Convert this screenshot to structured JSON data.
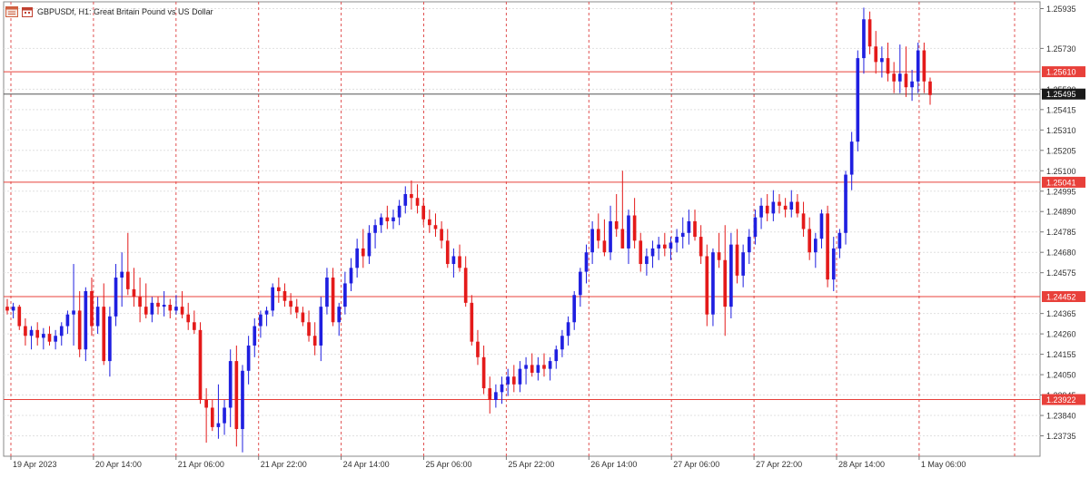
{
  "header": {
    "symbol_line": "GBPUSDf, H1:  Great Britain Pound vs US Dollar",
    "icons": [
      "chart-window-icon",
      "calendar-icon"
    ]
  },
  "colors": {
    "bull": "#1f1fe0",
    "bear": "#e41a1a",
    "grid": "#e0e0e0",
    "hline": "#e8403a",
    "price_line": "#555555",
    "vline": "#e05050",
    "axis_text": "#333333"
  },
  "chart_data": {
    "type": "candlestick",
    "title": "GBPUSDf, H1:  Great Britain Pound vs US Dollar",
    "xlabel": "",
    "ylabel": "",
    "ylim": [
      1.2363,
      1.2597
    ],
    "y_ticks": [
      "1.25935",
      "1.25730",
      "1.25520",
      "1.25415",
      "1.25310",
      "1.25205",
      "1.25100",
      "1.24995",
      "1.24890",
      "1.24785",
      "1.24680",
      "1.24575",
      "1.24365",
      "1.24260",
      "1.24155",
      "1.24050",
      "1.23945",
      "1.23840",
      "1.23735"
    ],
    "x_ticks": [
      "19 Apr 2023",
      "20 Apr 14:00",
      "21 Apr 06:00",
      "21 Apr 22:00",
      "24 Apr 14:00",
      "25 Apr 06:00",
      "25 Apr 22:00",
      "26 Apr 14:00",
      "27 Apr 06:00",
      "27 Apr 22:00",
      "28 Apr 14:00",
      "1 May 06:00"
    ],
    "levels": [
      {
        "label": "1.25610",
        "value": 1.2561,
        "style": "resistance"
      },
      {
        "label": "1.25041",
        "value": 1.25041,
        "style": "resistance"
      },
      {
        "label": "1.24452",
        "value": 1.24452,
        "style": "support"
      },
      {
        "label": "1.23922",
        "value": 1.23922,
        "style": "support"
      }
    ],
    "current_price": {
      "label": "1.25495",
      "value": 1.25495
    },
    "grid": true,
    "candles": [
      [
        1.244,
        1.2444,
        1.2436,
        1.2438
      ],
      [
        1.2438,
        1.2442,
        1.2434,
        1.244
      ],
      [
        1.244,
        1.2441,
        1.2428,
        1.243
      ],
      [
        1.243,
        1.2434,
        1.242,
        1.2425
      ],
      [
        1.2425,
        1.243,
        1.2418,
        1.2428
      ],
      [
        1.2428,
        1.2432,
        1.242,
        1.2424
      ],
      [
        1.2424,
        1.2429,
        1.2418,
        1.2426
      ],
      [
        1.2426,
        1.243,
        1.242,
        1.2422
      ],
      [
        1.2422,
        1.2428,
        1.2418,
        1.2425
      ],
      [
        1.2425,
        1.2432,
        1.242,
        1.243
      ],
      [
        1.243,
        1.2438,
        1.2426,
        1.2436
      ],
      [
        1.2436,
        1.2462,
        1.242,
        1.2438
      ],
      [
        1.2438,
        1.2448,
        1.2414,
        1.2418
      ],
      [
        1.2418,
        1.245,
        1.2412,
        1.2448
      ],
      [
        1.2448,
        1.2455,
        1.2425,
        1.243
      ],
      [
        1.243,
        1.2445,
        1.2426,
        1.244
      ],
      [
        1.244,
        1.2452,
        1.241,
        1.2412
      ],
      [
        1.2412,
        1.244,
        1.2404,
        1.2435
      ],
      [
        1.2435,
        1.2462,
        1.243,
        1.2455
      ],
      [
        1.2455,
        1.2468,
        1.244,
        1.2458
      ],
      [
        1.2458,
        1.2478,
        1.2446,
        1.2449
      ],
      [
        1.2449,
        1.246,
        1.244,
        1.2445
      ],
      [
        1.2445,
        1.2455,
        1.2432,
        1.244
      ],
      [
        1.244,
        1.2452,
        1.2434,
        1.2436
      ],
      [
        1.2436,
        1.2445,
        1.2432,
        1.2442
      ],
      [
        1.2442,
        1.2445,
        1.2436,
        1.244
      ],
      [
        1.244,
        1.2448,
        1.2435,
        1.2441
      ],
      [
        1.2441,
        1.2444,
        1.2434,
        1.2438
      ],
      [
        1.2438,
        1.2446,
        1.2436,
        1.244
      ],
      [
        1.244,
        1.2448,
        1.2434,
        1.2436
      ],
      [
        1.2436,
        1.2442,
        1.2428,
        1.2432
      ],
      [
        1.2432,
        1.2438,
        1.2426,
        1.2428
      ],
      [
        1.2428,
        1.2432,
        1.239,
        1.2392
      ],
      [
        1.2392,
        1.2398,
        1.237,
        1.2388
      ],
      [
        1.2388,
        1.2392,
        1.2376,
        1.2378
      ],
      [
        1.2378,
        1.24,
        1.2372,
        1.238
      ],
      [
        1.238,
        1.2392,
        1.2374,
        1.2388
      ],
      [
        1.2388,
        1.2418,
        1.2378,
        1.2412
      ],
      [
        1.2412,
        1.242,
        1.2368,
        1.2377
      ],
      [
        1.2377,
        1.241,
        1.2365,
        1.2407
      ],
      [
        1.2407,
        1.2425,
        1.24,
        1.242
      ],
      [
        1.242,
        1.2434,
        1.2414,
        1.243
      ],
      [
        1.243,
        1.2438,
        1.2424,
        1.2436
      ],
      [
        1.2436,
        1.244,
        1.243,
        1.2438
      ],
      [
        1.2438,
        1.2452,
        1.2435,
        1.245
      ],
      [
        1.245,
        1.2455,
        1.2442,
        1.2448
      ],
      [
        1.2448,
        1.2452,
        1.244,
        1.2443
      ],
      [
        1.2443,
        1.2447,
        1.2436,
        1.244
      ],
      [
        1.244,
        1.2444,
        1.2434,
        1.2437
      ],
      [
        1.2437,
        1.244,
        1.243,
        1.2432
      ],
      [
        1.2432,
        1.2438,
        1.2422,
        1.2425
      ],
      [
        1.2425,
        1.2432,
        1.2415,
        1.242
      ],
      [
        1.242,
        1.2445,
        1.2412,
        1.244
      ],
      [
        1.244,
        1.246,
        1.2436,
        1.2455
      ],
      [
        1.2455,
        1.246,
        1.243,
        1.2432
      ],
      [
        1.2432,
        1.2442,
        1.2425,
        1.244
      ],
      [
        1.244,
        1.2458,
        1.2436,
        1.2452
      ],
      [
        1.2452,
        1.2465,
        1.2448,
        1.246
      ],
      [
        1.246,
        1.2475,
        1.2455,
        1.247
      ],
      [
        1.247,
        1.248,
        1.246,
        1.2466
      ],
      [
        1.2466,
        1.2482,
        1.2462,
        1.2478
      ],
      [
        1.2478,
        1.2485,
        1.247,
        1.2482
      ],
      [
        1.2482,
        1.2488,
        1.2478,
        1.2486
      ],
      [
        1.2486,
        1.2492,
        1.248,
        1.2484
      ],
      [
        1.2484,
        1.249,
        1.248,
        1.2486
      ],
      [
        1.2486,
        1.2495,
        1.2482,
        1.2492
      ],
      [
        1.2492,
        1.2502,
        1.2488,
        1.2498
      ],
      [
        1.2498,
        1.2505,
        1.249,
        1.2496
      ],
      [
        1.2496,
        1.2503,
        1.2488,
        1.2492
      ],
      [
        1.2492,
        1.2496,
        1.2482,
        1.2485
      ],
      [
        1.2485,
        1.249,
        1.2478,
        1.2482
      ],
      [
        1.2482,
        1.2488,
        1.2476,
        1.248
      ],
      [
        1.248,
        1.2484,
        1.247,
        1.2474
      ],
      [
        1.2474,
        1.248,
        1.246,
        1.2462
      ],
      [
        1.2462,
        1.247,
        1.2455,
        1.2466
      ],
      [
        1.2466,
        1.2472,
        1.2458,
        1.246
      ],
      [
        1.246,
        1.2466,
        1.244,
        1.2442
      ],
      [
        1.2442,
        1.2446,
        1.242,
        1.2422
      ],
      [
        1.2422,
        1.2428,
        1.241,
        1.2414
      ],
      [
        1.2414,
        1.242,
        1.2395,
        1.2398
      ],
      [
        1.2398,
        1.2404,
        1.2385,
        1.2392
      ],
      [
        1.2392,
        1.24,
        1.2388,
        1.2396
      ],
      [
        1.2396,
        1.2404,
        1.239,
        1.24
      ],
      [
        1.24,
        1.2408,
        1.2394,
        1.2404
      ],
      [
        1.2404,
        1.241,
        1.2396,
        1.24
      ],
      [
        1.24,
        1.2412,
        1.2396,
        1.2408
      ],
      [
        1.2408,
        1.2414,
        1.24,
        1.241
      ],
      [
        1.241,
        1.2416,
        1.2404,
        1.2406
      ],
      [
        1.2406,
        1.2414,
        1.2402,
        1.241
      ],
      [
        1.241,
        1.2416,
        1.2404,
        1.2408
      ],
      [
        1.2408,
        1.2414,
        1.2402,
        1.2412
      ],
      [
        1.2412,
        1.242,
        1.2408,
        1.2418
      ],
      [
        1.2418,
        1.2428,
        1.2414,
        1.2425
      ],
      [
        1.2425,
        1.2435,
        1.242,
        1.2432
      ],
      [
        1.2432,
        1.2448,
        1.2428,
        1.2446
      ],
      [
        1.2446,
        1.246,
        1.244,
        1.2458
      ],
      [
        1.2458,
        1.2472,
        1.2452,
        1.2468
      ],
      [
        1.2468,
        1.2484,
        1.2462,
        1.248
      ],
      [
        1.248,
        1.2488,
        1.247,
        1.2474
      ],
      [
        1.2474,
        1.2485,
        1.2466,
        1.2468
      ],
      [
        1.2468,
        1.2492,
        1.2464,
        1.2484
      ],
      [
        1.2484,
        1.2498,
        1.2476,
        1.248
      ],
      [
        1.248,
        1.251,
        1.247,
        1.247
      ],
      [
        1.247,
        1.249,
        1.2462,
        1.2487
      ],
      [
        1.2487,
        1.2496,
        1.247,
        1.2474
      ],
      [
        1.2474,
        1.2478,
        1.2458,
        1.2462
      ],
      [
        1.2462,
        1.247,
        1.2456,
        1.2466
      ],
      [
        1.2466,
        1.2474,
        1.246,
        1.247
      ],
      [
        1.247,
        1.2476,
        1.2464,
        1.2472
      ],
      [
        1.2472,
        1.2478,
        1.2466,
        1.247
      ],
      [
        1.247,
        1.2476,
        1.2464,
        1.2473
      ],
      [
        1.2473,
        1.248,
        1.2468,
        1.2476
      ],
      [
        1.2476,
        1.2486,
        1.247,
        1.2478
      ],
      [
        1.2478,
        1.249,
        1.2472,
        1.2484
      ],
      [
        1.2484,
        1.249,
        1.2474,
        1.2476
      ],
      [
        1.2476,
        1.2482,
        1.2462,
        1.2466
      ],
      [
        1.2466,
        1.2472,
        1.243,
        1.2436
      ],
      [
        1.2436,
        1.247,
        1.243,
        1.2468
      ],
      [
        1.2468,
        1.2478,
        1.246,
        1.2464
      ],
      [
        1.2464,
        1.2482,
        1.2425,
        1.244
      ],
      [
        1.244,
        1.2478,
        1.2434,
        1.2472
      ],
      [
        1.2472,
        1.248,
        1.2452,
        1.2456
      ],
      [
        1.2456,
        1.2472,
        1.245,
        1.2468
      ],
      [
        1.2468,
        1.248,
        1.2462,
        1.2476
      ],
      [
        1.2476,
        1.249,
        1.2472,
        1.2486
      ],
      [
        1.2486,
        1.2496,
        1.248,
        1.2492
      ],
      [
        1.2492,
        1.2498,
        1.2484,
        1.2488
      ],
      [
        1.2488,
        1.25,
        1.2484,
        1.2494
      ],
      [
        1.2494,
        1.2498,
        1.2488,
        1.2492
      ],
      [
        1.2492,
        1.2496,
        1.2486,
        1.249
      ],
      [
        1.249,
        1.25,
        1.2486,
        1.2494
      ],
      [
        1.2494,
        1.2498,
        1.2486,
        1.2488
      ],
      [
        1.2488,
        1.2494,
        1.2476,
        1.248
      ],
      [
        1.248,
        1.2486,
        1.2464,
        1.2468
      ],
      [
        1.2468,
        1.2478,
        1.246,
        1.2475
      ],
      [
        1.2475,
        1.249,
        1.247,
        1.2488
      ],
      [
        1.2488,
        1.2492,
        1.245,
        1.2454
      ],
      [
        1.2454,
        1.2476,
        1.2448,
        1.247
      ],
      [
        1.247,
        1.248,
        1.2465,
        1.2478
      ],
      [
        1.2478,
        1.251,
        1.2472,
        1.2508
      ],
      [
        1.2508,
        1.253,
        1.25,
        1.2525
      ],
      [
        1.2525,
        1.2572,
        1.252,
        1.2568
      ],
      [
        1.2568,
        1.2594,
        1.256,
        1.2588
      ],
      [
        1.2588,
        1.2592,
        1.257,
        1.2574
      ],
      [
        1.2574,
        1.2582,
        1.256,
        1.2566
      ],
      [
        1.2566,
        1.2574,
        1.2558,
        1.2568
      ],
      [
        1.2568,
        1.2576,
        1.2556,
        1.256
      ],
      [
        1.256,
        1.2566,
        1.255,
        1.2556
      ],
      [
        1.2556,
        1.2575,
        1.255,
        1.256
      ],
      [
        1.256,
        1.2574,
        1.2548,
        1.2553
      ],
      [
        1.2553,
        1.2562,
        1.2546,
        1.2556
      ],
      [
        1.2556,
        1.2576,
        1.255,
        1.2572
      ],
      [
        1.2572,
        1.2576,
        1.255,
        1.2556
      ],
      [
        1.2556,
        1.2558,
        1.2544,
        1.2549
      ]
    ]
  }
}
